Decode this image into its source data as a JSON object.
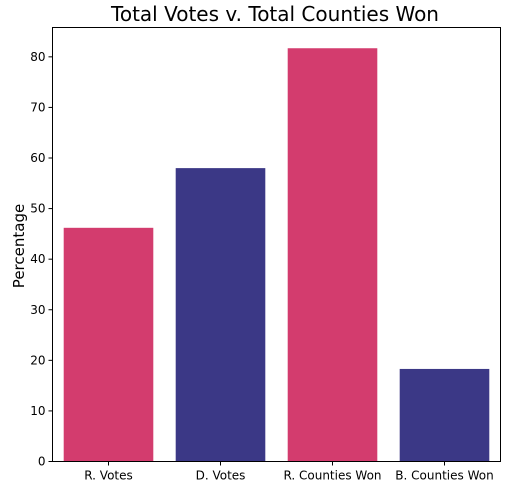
{
  "chart_data": {
    "type": "bar",
    "title": "Total Votes v. Total Counties Won",
    "xlabel": "",
    "ylabel": "Percentage",
    "categories": [
      "R. Votes",
      "D. Votes",
      "R. Counties Won",
      "B. Counties Won"
    ],
    "values": [
      46.2,
      58.0,
      81.7,
      18.3
    ],
    "colors": [
      "#d33c6e",
      "#3b3886",
      "#d33c6e",
      "#3b3886"
    ],
    "ylim": [
      0,
      85.8
    ],
    "yticks": [
      0,
      10,
      20,
      30,
      40,
      50,
      60,
      70,
      80
    ],
    "grid": false,
    "legend": "none"
  }
}
